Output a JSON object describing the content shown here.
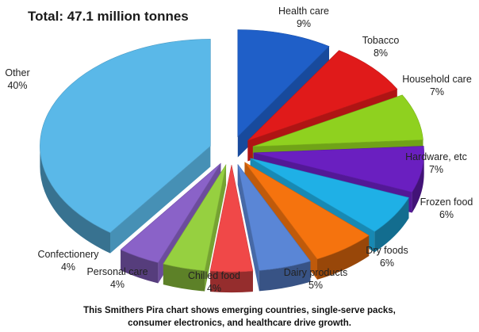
{
  "chart_data": {
    "type": "pie",
    "title": "Total: 47.1 million tonnes",
    "caption_lines": [
      "This Smithers Pira chart shows emerging countries, single-serve packs,",
      "consumer electronics, and healthcare drive growth."
    ],
    "slices": [
      {
        "name": "Health care",
        "label": "9%",
        "value": 9,
        "color": "#1f5fc8"
      },
      {
        "name": "Tobacco",
        "label": "8%",
        "value": 8,
        "color": "#e01a1a"
      },
      {
        "name": "Household care",
        "label": "7%",
        "value": 7,
        "color": "#8fd11f"
      },
      {
        "name": "Hardware, etc",
        "label": "7%",
        "value": 7,
        "color": "#6a1fc0"
      },
      {
        "name": "Frozen food",
        "label": "6%",
        "value": 6,
        "color": "#1fb0e6"
      },
      {
        "name": "Dry foods",
        "label": "6%",
        "value": 6,
        "color": "#f5730e"
      },
      {
        "name": "Dairy products",
        "label": "5%",
        "value": 5,
        "color": "#5a86d6"
      },
      {
        "name": "Chilled food",
        "label": "4%",
        "value": 4,
        "color": "#f04848"
      },
      {
        "name": "Personal care",
        "label": "4%",
        "value": 4,
        "color": "#96d040"
      },
      {
        "name": "Confectionery",
        "label": "4%",
        "value": 4,
        "color": "#8a62c8"
      },
      {
        "name": "Other",
        "label": "40%",
        "value": 40,
        "color": "#5ab8e8"
      }
    ]
  }
}
